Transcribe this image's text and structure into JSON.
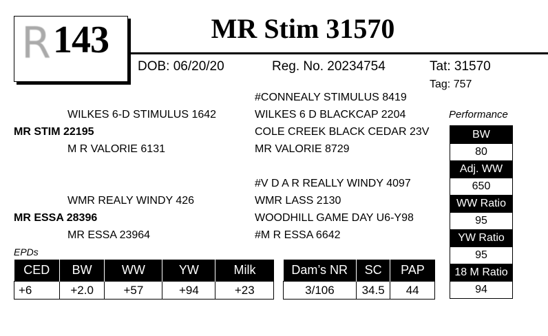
{
  "lot": {
    "logo_letter": "R",
    "number": "143"
  },
  "title": "MR Stim 31570",
  "info": {
    "dob": "DOB: 06/20/20",
    "reg": "Reg. No. 20234754",
    "tat": "Tat: 31570",
    "tag": "Tag: 757"
  },
  "pedigree": {
    "sire": "MR STIM 22195",
    "sire_sire": "WILKES 6-D STIMULUS 1642",
    "sire_dam": "M R VALORIE 6131",
    "sss": "#CONNEALY STIMULUS 8419",
    "ssd": "WILKES 6 D BLACKCAP 2204",
    "sds": "COLE CREEK BLACK CEDAR 23V",
    "sdd": "MR VALORIE 8729",
    "dam": "MR ESSA 28396",
    "dam_sire": "WMR REALY WINDY 426",
    "dam_dam": "MR ESSA 23964",
    "dss": "#V D A R REALLY WINDY 4097",
    "dsd": "WMR LASS 2130",
    "dds": "WOODHILL GAME DAY U6-Y98",
    "ddd": "#M R ESSA 6642"
  },
  "performance": {
    "label": "Performance",
    "items": [
      {
        "label": "BW",
        "value": "80"
      },
      {
        "label": "Adj. WW",
        "value": "650"
      },
      {
        "label": "WW Ratio",
        "value": "95"
      },
      {
        "label": "YW Ratio",
        "value": "95"
      },
      {
        "label": "18 M Ratio",
        "value": "94"
      }
    ]
  },
  "epds": {
    "label": "EPDs",
    "headers": [
      "CED",
      "BW",
      "WW",
      "YW",
      "Milk"
    ],
    "values": [
      "+6",
      "+2.0",
      "+57",
      "+94",
      "+23"
    ]
  },
  "dam_stats": {
    "headers": [
      "Dam’s NR",
      "SC",
      "PAP"
    ],
    "values": [
      "3/106",
      "34.5",
      "44"
    ]
  }
}
